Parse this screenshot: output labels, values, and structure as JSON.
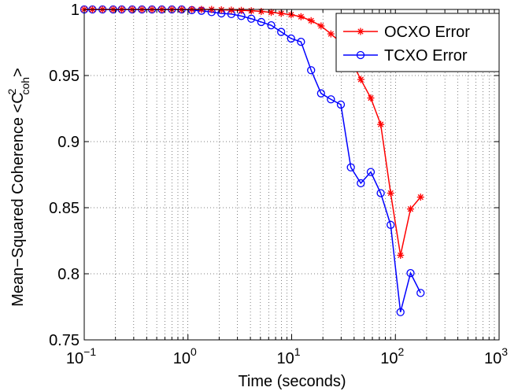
{
  "chart_data": {
    "type": "line",
    "title": "",
    "xlabel": "Time (seconds)",
    "ylabel_main": "Mean−Squared Coherence  <C",
    "ylabel_sup": "2",
    "ylabel_sub": "coh",
    "ylabel_end": ">",
    "x_scale": "log",
    "xlim": [
      0.1,
      1000
    ],
    "ylim": [
      0.75,
      1.0
    ],
    "grid": true,
    "grid_style": "dotted",
    "legend_position": "top-right",
    "x_ticks": [
      {
        "value": 0.1,
        "base": "10",
        "exp": "−1"
      },
      {
        "value": 1,
        "base": "10",
        "exp": "0"
      },
      {
        "value": 10,
        "base": "10",
        "exp": "1"
      },
      {
        "value": 100,
        "base": "10",
        "exp": "2"
      },
      {
        "value": 1000,
        "base": "10",
        "exp": "3"
      }
    ],
    "y_ticks": [
      {
        "value": 0.75,
        "label": "0.75"
      },
      {
        "value": 0.8,
        "label": "0.8"
      },
      {
        "value": 0.85,
        "label": "0.85"
      },
      {
        "value": 0.9,
        "label": "0.9"
      },
      {
        "value": 0.95,
        "label": "0.95"
      },
      {
        "value": 1.0,
        "label": "1"
      }
    ],
    "series": [
      {
        "name": "OCXO Error",
        "color": "#ff0000",
        "marker": "asterisk",
        "x": [
          0.1,
          0.12,
          0.15,
          0.19,
          0.23,
          0.29,
          0.36,
          0.45,
          0.56,
          0.7,
          0.87,
          1.09,
          1.35,
          1.69,
          2.1,
          2.62,
          3.27,
          4.08,
          5.09,
          6.35,
          7.92,
          9.88,
          12.3,
          15.4,
          19.2,
          23.9,
          29.8,
          37.2,
          46.4,
          57.9,
          72.2,
          90.0,
          112,
          140,
          175
        ],
        "y": [
          1.0,
          1.0,
          1.0,
          1.0,
          1.0,
          1.0,
          1.0,
          1.0,
          1.0,
          1.0,
          1.0,
          1.0,
          1.0,
          1.0,
          0.9997,
          0.9995,
          0.9993,
          0.999,
          0.9985,
          0.9978,
          0.997,
          0.996,
          0.9945,
          0.9915,
          0.9875,
          0.9815,
          0.975,
          0.962,
          0.947,
          0.933,
          0.913,
          0.861,
          0.814,
          0.849,
          0.858
        ]
      },
      {
        "name": "TCXO Error",
        "color": "#0000ff",
        "marker": "circle",
        "x": [
          0.1,
          0.12,
          0.15,
          0.19,
          0.23,
          0.29,
          0.36,
          0.45,
          0.56,
          0.7,
          0.87,
          1.09,
          1.35,
          1.69,
          2.1,
          2.62,
          3.27,
          4.08,
          5.09,
          6.35,
          7.92,
          9.88,
          12.3,
          15.4,
          19.2,
          23.9,
          29.8,
          37.2,
          46.4,
          57.9,
          72.2,
          90.0,
          112,
          140,
          175
        ],
        "y": [
          1.0,
          1.0,
          1.0,
          1.0,
          1.0,
          1.0,
          1.0,
          1.0,
          1.0,
          1.0,
          1.0,
          0.9995,
          0.999,
          0.998,
          0.997,
          0.9965,
          0.995,
          0.993,
          0.9905,
          0.988,
          0.983,
          0.978,
          0.9755,
          0.954,
          0.9365,
          0.932,
          0.928,
          0.8805,
          0.8685,
          0.877,
          0.861,
          0.837,
          0.771,
          0.8005,
          0.7855
        ]
      }
    ]
  }
}
